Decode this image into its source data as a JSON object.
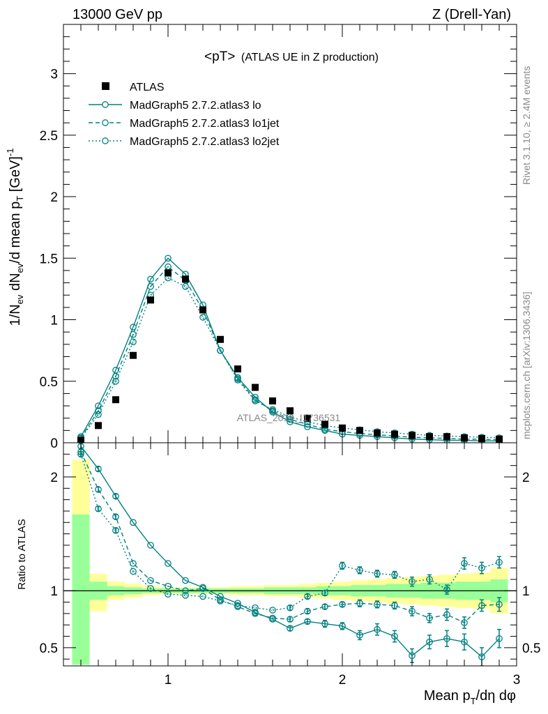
{
  "header": {
    "left": "13000 GeV pp",
    "right": "Z (Drell-Yan)"
  },
  "side_labels": {
    "rivet": "Rivet 3.1.10, ≥ 2.4M events",
    "mcplots": "mcplots.cern.ch [arXiv:1306.3436]"
  },
  "watermark": "ATLAS_2019_I1736531",
  "colors": {
    "mc": "#008080",
    "band_yellow": "#ffff99",
    "band_green": "#99ff99",
    "data": "#000000"
  },
  "chart_data": [
    {
      "type": "scatter",
      "title": "<pT> (ATLAS UE in Z production)",
      "title_main": "<pT>",
      "title_sub": "(ATLAS UE in Z production)",
      "ylabel": "1/N_ev dN_ev/d mean p_T [GeV]^-1",
      "ylabel_parts": {
        "a": "1/N",
        "b": "ev",
        "c": " dN",
        "d": "ev",
        "e": "/d mean p",
        "f": "T",
        "g": " [GeV]",
        "h": "-1"
      },
      "xlim": [
        0.4,
        3.0
      ],
      "ylim": [
        0,
        3.4
      ],
      "yticks": [
        0,
        0.5,
        1,
        1.5,
        2,
        2.5,
        3
      ],
      "ytick_labels": [
        "0",
        "0.5",
        "1",
        "1.5",
        "2",
        "2.5",
        "3"
      ],
      "legend_position": "top-left",
      "x": [
        0.5,
        0.6,
        0.7,
        0.8,
        0.9,
        1.0,
        1.1,
        1.2,
        1.3,
        1.4,
        1.5,
        1.6,
        1.7,
        1.8,
        1.9,
        2.0,
        2.1,
        2.2,
        2.3,
        2.4,
        2.5,
        2.6,
        2.7,
        2.8,
        2.9
      ],
      "series": [
        {
          "name": "ATLAS",
          "style": "data",
          "values": [
            0.02,
            0.14,
            0.35,
            0.71,
            1.16,
            1.38,
            1.33,
            1.08,
            0.84,
            0.6,
            0.45,
            0.34,
            0.26,
            0.2,
            0.15,
            0.12,
            0.1,
            0.08,
            0.07,
            0.06,
            0.05,
            0.05,
            0.04,
            0.035,
            0.03
          ]
        },
        {
          "name": "MadGraph5 2.7.2.atlas3 lo",
          "style": "solid",
          "values": [
            0.05,
            0.3,
            0.59,
            0.94,
            1.33,
            1.5,
            1.37,
            1.12,
            0.75,
            0.53,
            0.37,
            0.25,
            0.17,
            0.13,
            0.1,
            0.07,
            0.06,
            0.05,
            0.04,
            0.03,
            0.025,
            0.02,
            0.02,
            0.015,
            0.015
          ]
        },
        {
          "name": "MadGraph5 2.7.2.atlas3 lo1jet",
          "style": "dashed",
          "values": [
            0.04,
            0.26,
            0.54,
            0.88,
            1.27,
            1.43,
            1.32,
            1.08,
            0.75,
            0.52,
            0.35,
            0.26,
            0.19,
            0.15,
            0.11,
            0.09,
            0.075,
            0.065,
            0.055,
            0.045,
            0.04,
            0.035,
            0.03,
            0.028,
            0.025
          ]
        },
        {
          "name": "MadGraph5 2.7.2.atlas3 lo2jet",
          "style": "dotted",
          "values": [
            0.035,
            0.23,
            0.5,
            0.82,
            1.2,
            1.34,
            1.27,
            1.02,
            0.75,
            0.51,
            0.34,
            0.27,
            0.21,
            0.17,
            0.14,
            0.12,
            0.105,
            0.09,
            0.08,
            0.07,
            0.06,
            0.055,
            0.05,
            0.045,
            0.04
          ]
        }
      ]
    },
    {
      "type": "scatter",
      "ylabel": "Ratio to ATLAS",
      "xlabel": "Mean p_T/dη dφ",
      "xlabel_parts": {
        "a": "Mean p",
        "b": "T",
        "c": "/dη dφ"
      },
      "xlim": [
        0.4,
        3.0
      ],
      "ylim": [
        0.34,
        2.3
      ],
      "xticks": [
        1,
        2,
        3
      ],
      "xtick_labels": [
        "1",
        "2",
        "3"
      ],
      "yticks": [
        0.5,
        1,
        2
      ],
      "ytick_labels": [
        "0.5",
        "1",
        "2"
      ],
      "bins": [
        [
          0.45,
          0.55
        ],
        [
          0.55,
          0.65
        ],
        [
          0.65,
          0.75
        ],
        [
          0.75,
          0.85
        ],
        [
          0.85,
          0.95
        ],
        [
          0.95,
          1.05
        ],
        [
          1.05,
          1.15
        ],
        [
          1.15,
          1.25
        ],
        [
          1.25,
          1.35
        ],
        [
          1.35,
          1.45
        ],
        [
          1.45,
          1.55
        ],
        [
          1.55,
          1.65
        ],
        [
          1.65,
          1.75
        ],
        [
          1.75,
          1.85
        ],
        [
          1.85,
          1.95
        ],
        [
          1.95,
          2.05
        ],
        [
          2.05,
          2.15
        ],
        [
          2.15,
          2.25
        ],
        [
          2.25,
          2.35
        ],
        [
          2.35,
          2.45
        ],
        [
          2.45,
          2.55
        ],
        [
          2.55,
          2.65
        ],
        [
          2.65,
          2.75
        ],
        [
          2.75,
          2.85
        ],
        [
          2.85,
          2.95
        ]
      ],
      "band_yellow": [
        [
          0.35,
          2.15
        ],
        [
          0.82,
          1.15
        ],
        [
          0.92,
          1.08
        ],
        [
          0.94,
          1.06
        ],
        [
          0.96,
          1.04
        ],
        [
          0.97,
          1.03
        ],
        [
          0.97,
          1.03
        ],
        [
          0.97,
          1.03
        ],
        [
          0.97,
          1.03
        ],
        [
          0.96,
          1.04
        ],
        [
          0.96,
          1.04
        ],
        [
          0.95,
          1.05
        ],
        [
          0.95,
          1.05
        ],
        [
          0.94,
          1.06
        ],
        [
          0.93,
          1.07
        ],
        [
          0.92,
          1.08
        ],
        [
          0.91,
          1.09
        ],
        [
          0.9,
          1.1
        ],
        [
          0.89,
          1.11
        ],
        [
          0.88,
          1.12
        ],
        [
          0.87,
          1.13
        ],
        [
          0.86,
          1.14
        ],
        [
          0.85,
          1.15
        ],
        [
          0.84,
          1.16
        ],
        [
          0.8,
          1.2
        ]
      ],
      "band_green": [
        [
          0.35,
          1.67
        ],
        [
          0.92,
          1.08
        ],
        [
          0.96,
          1.04
        ],
        [
          0.97,
          1.03
        ],
        [
          0.98,
          1.02
        ],
        [
          0.98,
          1.02
        ],
        [
          0.98,
          1.02
        ],
        [
          0.98,
          1.02
        ],
        [
          0.98,
          1.02
        ],
        [
          0.98,
          1.02
        ],
        [
          0.98,
          1.02
        ],
        [
          0.97,
          1.03
        ],
        [
          0.97,
          1.03
        ],
        [
          0.97,
          1.03
        ],
        [
          0.96,
          1.04
        ],
        [
          0.96,
          1.04
        ],
        [
          0.95,
          1.05
        ],
        [
          0.95,
          1.05
        ],
        [
          0.94,
          1.06
        ],
        [
          0.94,
          1.06
        ],
        [
          0.93,
          1.07
        ],
        [
          0.93,
          1.07
        ],
        [
          0.92,
          1.08
        ],
        [
          0.92,
          1.08
        ],
        [
          0.9,
          1.1
        ]
      ],
      "x": [
        0.5,
        0.6,
        0.7,
        0.8,
        0.9,
        1.0,
        1.1,
        1.2,
        1.3,
        1.4,
        1.5,
        1.6,
        1.7,
        1.8,
        1.9,
        2.0,
        2.1,
        2.2,
        2.3,
        2.4,
        2.5,
        2.6,
        2.7,
        2.8,
        2.9
      ],
      "series": [
        {
          "name": "MadGraph5 2.7.2.atlas3 lo",
          "style": "solid",
          "values": [
            2.27,
            2.07,
            1.83,
            1.6,
            1.4,
            1.24,
            1.09,
            1.03,
            0.95,
            0.89,
            0.81,
            0.75,
            0.67,
            0.73,
            0.71,
            0.69,
            0.61,
            0.66,
            0.6,
            0.43,
            0.55,
            0.58,
            0.55,
            0.42,
            0.58
          ],
          "errors": [
            0.02,
            0.02,
            0.02,
            0.01,
            0.01,
            0.01,
            0.01,
            0.01,
            0.01,
            0.01,
            0.01,
            0.01,
            0.02,
            0.02,
            0.03,
            0.03,
            0.04,
            0.05,
            0.05,
            0.06,
            0.06,
            0.07,
            0.07,
            0.08,
            0.08
          ]
        },
        {
          "name": "MadGraph5 2.7.2.atlas3 lo1jet",
          "style": "dashed",
          "values": [
            2.22,
            1.89,
            1.65,
            1.24,
            1.09,
            1.04,
            1.0,
            1.02,
            0.92,
            0.86,
            0.8,
            0.76,
            0.75,
            0.82,
            0.86,
            0.88,
            0.89,
            0.88,
            0.87,
            0.82,
            0.76,
            0.79,
            0.72,
            0.87,
            0.88
          ],
          "errors": [
            0.02,
            0.02,
            0.02,
            0.01,
            0.01,
            0.01,
            0.01,
            0.01,
            0.01,
            0.01,
            0.01,
            0.01,
            0.02,
            0.02,
            0.02,
            0.02,
            0.03,
            0.03,
            0.03,
            0.04,
            0.04,
            0.05,
            0.05,
            0.05,
            0.06
          ]
        },
        {
          "name": "MadGraph5 2.7.2.atlas3 lo2jet",
          "style": "dotted",
          "values": [
            2.2,
            1.72,
            1.53,
            1.17,
            1.02,
            0.97,
            0.96,
            0.95,
            0.91,
            0.87,
            0.85,
            0.83,
            0.85,
            0.95,
            0.98,
            1.22,
            1.18,
            1.15,
            1.14,
            1.08,
            1.1,
            1.01,
            1.24,
            1.2,
            1.25
          ],
          "errors": [
            0.02,
            0.02,
            0.02,
            0.01,
            0.01,
            0.01,
            0.01,
            0.01,
            0.01,
            0.01,
            0.01,
            0.01,
            0.02,
            0.02,
            0.02,
            0.03,
            0.03,
            0.03,
            0.03,
            0.04,
            0.04,
            0.04,
            0.05,
            0.05,
            0.05
          ]
        }
      ]
    }
  ]
}
